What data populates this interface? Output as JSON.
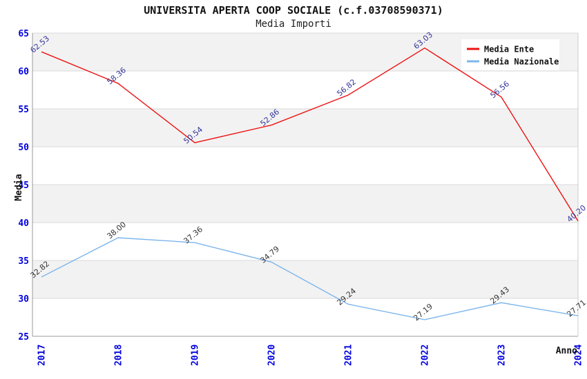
{
  "header": {
    "title": "UNIVERSITA APERTA COOP SOCIALE (c.f.03708590371)",
    "subtitle": "Media Importi"
  },
  "chart_data": {
    "type": "line",
    "title": "UNIVERSITA APERTA COOP SOCIALE (c.f.03708590371)",
    "subtitle": "Media Importi",
    "xlabel": "Anno",
    "ylabel": "Media",
    "categories": [
      "2017",
      "2018",
      "2019",
      "2020",
      "2021",
      "2022",
      "2023",
      "2024"
    ],
    "series": [
      {
        "name": "Media Nazionale",
        "color": "#7cb5ec",
        "label_color": "#333333",
        "values": [
          32.82,
          38.0,
          37.36,
          34.79,
          29.24,
          27.19,
          29.43,
          27.71
        ],
        "labels": [
          "32.82",
          "38.00",
          "37.36",
          "34.79",
          "29.24",
          "27.19",
          "29.43",
          "27.71"
        ]
      },
      {
        "name": "Media Ente",
        "color": "#ee1111",
        "label_color": "#333399",
        "values": [
          62.53,
          58.36,
          50.54,
          52.86,
          56.82,
          63.03,
          56.56,
          40.2
        ],
        "labels": [
          "62.53",
          "58.36",
          "50.54",
          "52.86",
          "56.82",
          "63.03",
          "56.56",
          "40.20"
        ]
      }
    ],
    "ylim": [
      25,
      65
    ],
    "ytick_step": 5,
    "yticks": [
      "25",
      "30",
      "35",
      "40",
      "45",
      "50",
      "55",
      "60",
      "65"
    ],
    "grid": "horizontal",
    "legend_position": "top-right",
    "band_colors": [
      "#f2f2f2",
      "#ffffff"
    ],
    "gridline_color": "#d9d9d9",
    "axis_line_color": "#999999",
    "right_border_color": "#cccccc",
    "tick_label_color": "#0000dd",
    "axis_title_color": "#111111",
    "legend_text_color": "#111111",
    "legend_bg": "#ffffff"
  }
}
